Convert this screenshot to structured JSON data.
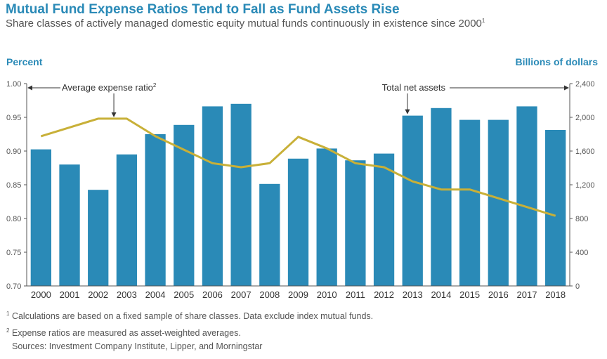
{
  "header": {
    "title": "Mutual Fund Expense Ratios Tend to Fall as Fund Assets Rise",
    "subtitle": "Share classes of actively managed domestic equity mutual funds continuously in existence since 2000",
    "subtitle_sup": "1"
  },
  "chart_data": {
    "type": "bar+line",
    "categories": [
      "2000",
      "2001",
      "2002",
      "2003",
      "2004",
      "2005",
      "2006",
      "2007",
      "2008",
      "2009",
      "2010",
      "2011",
      "2012",
      "2013",
      "2014",
      "2015",
      "2016",
      "2017",
      "2018"
    ],
    "series": [
      {
        "name": "Total net assets",
        "type": "bar",
        "axis": "right",
        "values": [
          1620,
          1440,
          1140,
          1560,
          1800,
          1910,
          2130,
          2160,
          1210,
          1510,
          1630,
          1490,
          1570,
          2020,
          2110,
          1970,
          1970,
          2130,
          1850
        ],
        "color": "#2a8ab7"
      },
      {
        "name": "Average expense ratio",
        "name_sup": "2",
        "type": "line",
        "axis": "left",
        "values": [
          0.922,
          0.935,
          0.948,
          0.948,
          0.922,
          0.902,
          0.882,
          0.876,
          0.882,
          0.921,
          0.904,
          0.882,
          0.876,
          0.855,
          0.843,
          0.843,
          0.83,
          0.817,
          0.804
        ],
        "color": "#c8b038"
      }
    ],
    "left_axis": {
      "title": "Percent",
      "min": 0.7,
      "max": 1.0,
      "ticks": [
        "0.70",
        "0.75",
        "0.80",
        "0.85",
        "0.90",
        "0.95",
        "1.00"
      ]
    },
    "right_axis": {
      "title": "Billions of dollars",
      "min": 0,
      "max": 2400,
      "ticks": [
        "0",
        "400",
        "800",
        "1,200",
        "1,600",
        "2,000",
        "2,400"
      ]
    },
    "annotations": [
      {
        "text": "Average expense ratio",
        "sup": "2",
        "points_to": "left",
        "series": "Average expense ratio"
      },
      {
        "text": "Total net assets",
        "points_to": "right",
        "series": "Total net assets"
      }
    ]
  },
  "footnotes": [
    {
      "sup": "1",
      "text": "Calculations are based on a fixed sample of share classes. Data exclude index mutual funds."
    },
    {
      "sup": "2",
      "text": "Expense ratios are measured as asset-weighted averages."
    },
    {
      "sup": "",
      "text": "Sources: Investment Company Institute, Lipper, and Morningstar"
    }
  ]
}
